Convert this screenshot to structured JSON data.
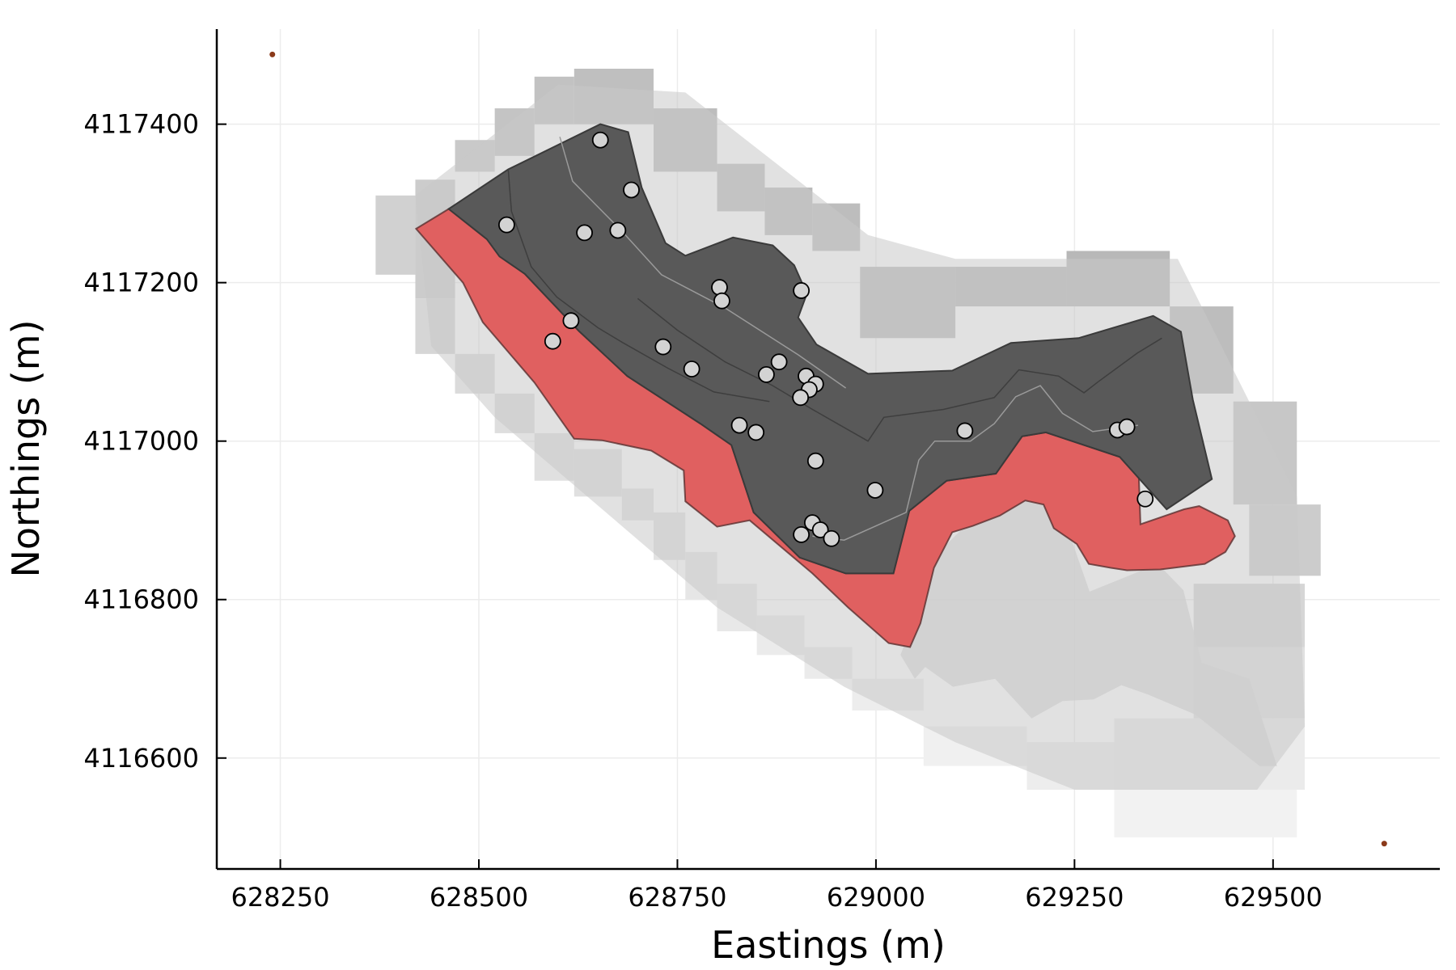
{
  "chart_data": {
    "type": "scatter",
    "title": "",
    "xlabel": "Eastings (m)",
    "ylabel": "Northings (m)",
    "xlim": [
      628170,
      629710
    ],
    "ylim": [
      4116460,
      4117520
    ],
    "grid": true,
    "legend": "none",
    "x_ticks": [
      628250,
      628500,
      628750,
      629000,
      629250,
      629500
    ],
    "y_ticks": [
      4116600,
      4116800,
      4117000,
      4117200,
      4117400
    ],
    "x_tick_labels": [
      "628250",
      "628500",
      "628750",
      "629000",
      "629250",
      "629500"
    ],
    "y_tick_labels": [
      "4116600",
      "4116800",
      "4117000",
      "4117200",
      "4117400"
    ],
    "colors": {
      "dark_region": "#595959",
      "red_region": "#e06060",
      "points_fill": "#d3d3d3",
      "points_stroke": "#000000",
      "corner_markers": "#8b3a1a"
    },
    "dark_region": [
      [
        628462,
        4117293
      ],
      [
        628537,
        4117343
      ],
      [
        628653,
        4117400
      ],
      [
        628688,
        4117390
      ],
      [
        628705,
        4117320
      ],
      [
        628735,
        4117250
      ],
      [
        628760,
        4117234
      ],
      [
        628820,
        4117257
      ],
      [
        628870,
        4117247
      ],
      [
        628897,
        4117222
      ],
      [
        628913,
        4117186
      ],
      [
        628902,
        4117156
      ],
      [
        628925,
        4117122
      ],
      [
        628990,
        4117085
      ],
      [
        629096,
        4117089
      ],
      [
        629170,
        4117124
      ],
      [
        629255,
        4117130
      ],
      [
        629349,
        4117158
      ],
      [
        629384,
        4117138
      ],
      [
        629399,
        4117052
      ],
      [
        629423,
        4116952
      ],
      [
        629366,
        4116914
      ],
      [
        629307,
        4116980
      ],
      [
        629214,
        4117011
      ],
      [
        629184,
        4117006
      ],
      [
        629151,
        4116959
      ],
      [
        629089,
        4116950
      ],
      [
        629042,
        4116912
      ],
      [
        629022,
        4116833
      ],
      [
        628962,
        4116833
      ],
      [
        628904,
        4116853
      ],
      [
        628846,
        4116910
      ],
      [
        628818,
        4116995
      ],
      [
        628779,
        4117022
      ],
      [
        628687,
        4117082
      ],
      [
        628626,
        4117139
      ],
      [
        628558,
        4117211
      ],
      [
        628526,
        4117233
      ],
      [
        628510,
        4117255
      ]
    ],
    "red_region": [
      [
        628421,
        4117268
      ],
      [
        628462,
        4117293
      ],
      [
        628510,
        4117255
      ],
      [
        628558,
        4117211
      ],
      [
        628626,
        4117139
      ],
      [
        628687,
        4117082
      ],
      [
        628779,
        4117022
      ],
      [
        628818,
        4116995
      ],
      [
        628846,
        4116910
      ],
      [
        628904,
        4116853
      ],
      [
        628962,
        4116833
      ],
      [
        629022,
        4116833
      ],
      [
        629042,
        4116912
      ],
      [
        629089,
        4116950
      ],
      [
        629151,
        4116959
      ],
      [
        629184,
        4117006
      ],
      [
        629214,
        4117011
      ],
      [
        629307,
        4116980
      ],
      [
        629330,
        4116985
      ],
      [
        629333,
        4116895
      ],
      [
        629388,
        4116914
      ],
      [
        629407,
        4116918
      ],
      [
        629443,
        4116900
      ],
      [
        629452,
        4116880
      ],
      [
        629440,
        4116860
      ],
      [
        629414,
        4116845
      ],
      [
        629358,
        4116838
      ],
      [
        629316,
        4116837
      ],
      [
        629296,
        4116840
      ],
      [
        629268,
        4116845
      ],
      [
        629253,
        4116870
      ],
      [
        629224,
        4116890
      ],
      [
        629211,
        4116920
      ],
      [
        629188,
        4116925
      ],
      [
        629156,
        4116906
      ],
      [
        629122,
        4116893
      ],
      [
        629096,
        4116885
      ],
      [
        629073,
        4116840
      ],
      [
        629056,
        4116770
      ],
      [
        629043,
        4116740
      ],
      [
        629016,
        4116745
      ],
      [
        628965,
        4116790
      ],
      [
        628920,
        4116833
      ],
      [
        628841,
        4116900
      ],
      [
        628800,
        4116892
      ],
      [
        628760,
        4116924
      ],
      [
        628758,
        4116963
      ],
      [
        628717,
        4116988
      ],
      [
        628655,
        4117001
      ],
      [
        628620,
        4117003
      ],
      [
        628570,
        4117074
      ],
      [
        628505,
        4117150
      ],
      [
        628480,
        4117200
      ]
    ],
    "shadow_region": [
      [
        629175,
        4116950
      ],
      [
        629209,
        4116923
      ],
      [
        629239,
        4116896
      ],
      [
        629269,
        4116810
      ],
      [
        629355,
        4116845
      ],
      [
        629387,
        4116812
      ],
      [
        629410,
        4116720
      ],
      [
        629470,
        4116700
      ],
      [
        629505,
        4116590
      ],
      [
        629483,
        4116590
      ],
      [
        629402,
        4116655
      ],
      [
        629343,
        4116680
      ],
      [
        629309,
        4116692
      ],
      [
        629274,
        4116674
      ],
      [
        629235,
        4116672
      ],
      [
        629196,
        4116650
      ],
      [
        629150,
        4116700
      ],
      [
        629097,
        4116690
      ],
      [
        629062,
        4116715
      ],
      [
        629049,
        4116700
      ],
      [
        629031,
        4116730
      ],
      [
        629079,
        4116860
      ],
      [
        629125,
        4116905
      ]
    ],
    "contours": [
      [
        [
          628537,
          4117343
        ],
        [
          628541,
          4117290
        ],
        [
          628566,
          4117220
        ],
        [
          628598,
          4117182
        ],
        [
          628650,
          4117143
        ],
        [
          628680,
          4117125
        ],
        [
          628738,
          4117092
        ],
        [
          628796,
          4117062
        ],
        [
          628866,
          4117050
        ]
      ],
      [
        [
          628602,
          4117384
        ],
        [
          628618,
          4117328
        ],
        [
          628680,
          4117265
        ],
        [
          628730,
          4117210
        ],
        [
          628810,
          4117168
        ],
        [
          628902,
          4117109
        ],
        [
          628962,
          4117067
        ]
      ],
      [
        [
          628700,
          4117180
        ],
        [
          628750,
          4117140
        ],
        [
          628810,
          4117100
        ],
        [
          628870,
          4117070
        ],
        [
          628920,
          4117040
        ],
        [
          628990,
          4117000
        ],
        [
          629010,
          4117030
        ],
        [
          629085,
          4117040
        ],
        [
          629149,
          4117055
        ],
        [
          629180,
          4117090
        ],
        [
          629230,
          4117082
        ],
        [
          629262,
          4117061
        ],
        [
          629280,
          4117075
        ],
        [
          629329,
          4117111
        ],
        [
          629360,
          4117130
        ]
      ],
      [
        [
          628920,
          4116880
        ],
        [
          628960,
          4116875
        ],
        [
          629038,
          4116910
        ],
        [
          629054,
          4116976
        ],
        [
          629074,
          4117000
        ],
        [
          629119,
          4117000
        ],
        [
          629149,
          4117022
        ],
        [
          629176,
          4117056
        ],
        [
          629207,
          4117070
        ],
        [
          629235,
          4117035
        ],
        [
          629273,
          4117012
        ],
        [
          629330,
          4117020
        ]
      ]
    ],
    "grid_cells": [
      [
        628370,
        4117210,
        628420,
        4117310,
        0.82
      ],
      [
        628420,
        4117180,
        628470,
        4117330,
        0.8
      ],
      [
        628420,
        4117110,
        628470,
        4117180,
        0.84
      ],
      [
        628470,
        4117340,
        628520,
        4117380,
        0.79
      ],
      [
        628470,
        4117060,
        628520,
        4117110,
        0.86
      ],
      [
        628520,
        4117360,
        628570,
        4117420,
        0.77
      ],
      [
        628520,
        4117010,
        628570,
        4117060,
        0.87
      ],
      [
        628570,
        4117400,
        628620,
        4117460,
        0.76
      ],
      [
        628570,
        4116950,
        628620,
        4117010,
        0.88
      ],
      [
        628620,
        4117400,
        628720,
        4117470,
        0.75
      ],
      [
        628620,
        4116930,
        628680,
        4116990,
        0.88
      ],
      [
        628680,
        4116900,
        628720,
        4116940,
        0.89
      ],
      [
        628720,
        4117340,
        628800,
        4117420,
        0.74
      ],
      [
        628720,
        4116850,
        628760,
        4116910,
        0.89
      ],
      [
        628760,
        4116800,
        628800,
        4116860,
        0.9
      ],
      [
        628800,
        4117290,
        628860,
        4117350,
        0.74
      ],
      [
        628800,
        4116760,
        628850,
        4116820,
        0.91
      ],
      [
        628850,
        4116730,
        628910,
        4116780,
        0.92
      ],
      [
        628860,
        4117260,
        628920,
        4117320,
        0.73
      ],
      [
        628910,
        4116700,
        628970,
        4116740,
        0.92
      ],
      [
        628920,
        4117240,
        628980,
        4117300,
        0.74
      ],
      [
        628970,
        4116660,
        629060,
        4116700,
        0.93
      ],
      [
        628980,
        4117130,
        629100,
        4117220,
        0.73
      ],
      [
        629100,
        4117170,
        629240,
        4117220,
        0.72
      ],
      [
        629240,
        4117170,
        629370,
        4117240,
        0.72
      ],
      [
        629370,
        4117060,
        629450,
        4117170,
        0.74
      ],
      [
        629450,
        4116920,
        629530,
        4117050,
        0.78
      ],
      [
        629470,
        4116830,
        629560,
        4116920,
        0.8
      ],
      [
        629400,
        4116740,
        629540,
        4116820,
        0.84
      ],
      [
        629400,
        4116650,
        629540,
        4116740,
        0.88
      ],
      [
        629300,
        4116560,
        629540,
        4116650,
        0.92
      ],
      [
        629190,
        4116560,
        629300,
        4116620,
        0.93
      ],
      [
        629060,
        4116590,
        629190,
        4116640,
        0.94
      ],
      [
        629300,
        4116500,
        629530,
        4116560,
        0.95
      ]
    ],
    "points": [
      [
        628535,
        4117273
      ],
      [
        628653,
        4117380
      ],
      [
        628692,
        4117317
      ],
      [
        628633,
        4117263
      ],
      [
        628675,
        4117266
      ],
      [
        628616,
        4117152
      ],
      [
        628593,
        4117126
      ],
      [
        628732,
        4117119
      ],
      [
        628768,
        4117091
      ],
      [
        628803,
        4117194
      ],
      [
        628806,
        4117177
      ],
      [
        628906,
        4117190
      ],
      [
        628878,
        4117100
      ],
      [
        628862,
        4117084
      ],
      [
        628912,
        4117082
      ],
      [
        628924,
        4117072
      ],
      [
        628916,
        4117065
      ],
      [
        628905,
        4117055
      ],
      [
        628828,
        4117020
      ],
      [
        628849,
        4117011
      ],
      [
        628924,
        4116975
      ],
      [
        628999,
        4116938
      ],
      [
        629112,
        4117013
      ],
      [
        629304,
        4117014
      ],
      [
        629316,
        4117018
      ],
      [
        629339,
        4116927
      ],
      [
        628920,
        4116897
      ],
      [
        628930,
        4116888
      ],
      [
        628906,
        4116882
      ],
      [
        628944,
        4116877
      ]
    ],
    "corner_markers": [
      [
        628240,
        4117488
      ],
      [
        629640,
        4116492
      ]
    ]
  }
}
